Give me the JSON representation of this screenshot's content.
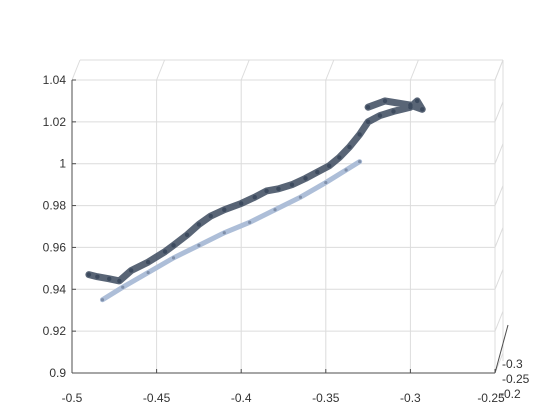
{
  "chart_data": {
    "type": "scatter",
    "view": "3d",
    "title": "",
    "xlabel": "",
    "ylabel": "",
    "zlabel": "",
    "xlim": [
      -0.5,
      -0.25
    ],
    "zlim": [
      0.9,
      1.04
    ],
    "ylim_depth": [
      -0.3,
      -0.2
    ],
    "grid": true,
    "x_ticks": [
      "-0.5",
      "-0.45",
      "-0.4",
      "-0.35",
      "-0.3",
      "-0.25"
    ],
    "z_ticks": [
      "0.9",
      "0.92",
      "0.94",
      "0.96",
      "0.98",
      "1",
      "1.02",
      "1.04"
    ],
    "depth_ticks": [
      "-0.3",
      "-0.25",
      "-0.2"
    ],
    "point_color": "#3c4a5e",
    "highlight_color": "#a9bad6",
    "series": [
      {
        "points": [
          [
            -0.49,
            0.947
          ],
          [
            -0.485,
            0.946
          ],
          [
            -0.478,
            0.945
          ],
          [
            -0.472,
            0.944
          ],
          [
            -0.465,
            0.949
          ],
          [
            -0.455,
            0.953
          ],
          [
            -0.445,
            0.958
          ],
          [
            -0.44,
            0.961
          ],
          [
            -0.432,
            0.966
          ],
          [
            -0.425,
            0.971
          ],
          [
            -0.418,
            0.975
          ],
          [
            -0.41,
            0.978
          ],
          [
            -0.4,
            0.981
          ],
          [
            -0.392,
            0.984
          ],
          [
            -0.385,
            0.987
          ],
          [
            -0.378,
            0.988
          ],
          [
            -0.37,
            0.99
          ],
          [
            -0.362,
            0.993
          ],
          [
            -0.355,
            0.996
          ],
          [
            -0.348,
            0.999
          ],
          [
            -0.342,
            1.003
          ],
          [
            -0.336,
            1.008
          ],
          [
            -0.33,
            1.014
          ],
          [
            -0.325,
            1.02
          ],
          [
            -0.318,
            1.023
          ],
          [
            -0.31,
            1.025
          ],
          [
            -0.3,
            1.027
          ],
          [
            -0.296,
            1.03
          ],
          [
            -0.293,
            1.026
          ],
          [
            -0.3,
            1.028
          ],
          [
            -0.315,
            1.03
          ],
          [
            -0.325,
            1.027
          ]
        ]
      },
      {
        "points": [
          [
            -0.482,
            0.935
          ],
          [
            -0.47,
            0.941
          ],
          [
            -0.455,
            0.948
          ],
          [
            -0.44,
            0.955
          ],
          [
            -0.425,
            0.961
          ],
          [
            -0.41,
            0.967
          ],
          [
            -0.395,
            0.972
          ],
          [
            -0.38,
            0.978
          ],
          [
            -0.365,
            0.984
          ],
          [
            -0.35,
            0.991
          ],
          [
            -0.338,
            0.997
          ],
          [
            -0.33,
            1.001
          ]
        ]
      }
    ]
  }
}
